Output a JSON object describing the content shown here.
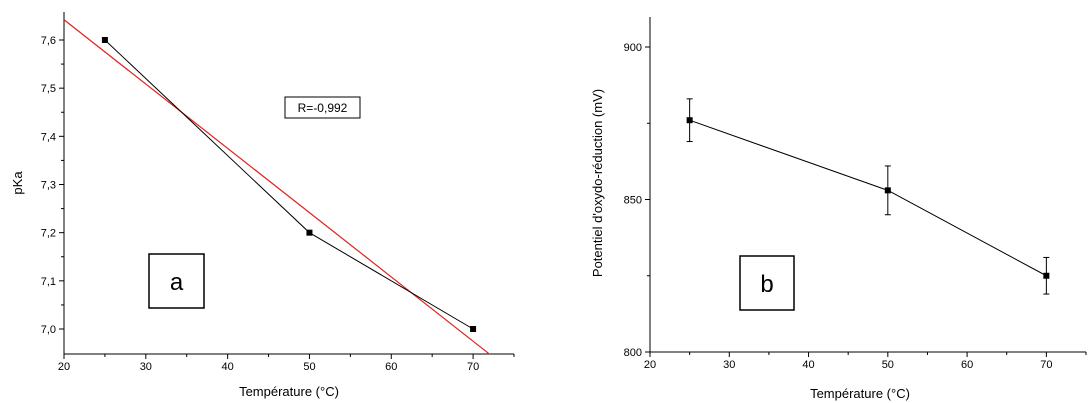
{
  "chart_data": [
    {
      "type": "line",
      "panel_label": "a",
      "xlabel": "Température (°C)",
      "ylabel": "pKa",
      "xlim": [
        20,
        75
      ],
      "ylim": [
        6.95,
        7.65
      ],
      "x_ticks": [
        20,
        25,
        30,
        35,
        40,
        45,
        50,
        55,
        60,
        65,
        70,
        75
      ],
      "x_tick_labels": [
        "20",
        "30",
        "40",
        "50",
        "60",
        "70"
      ],
      "y_ticks": [
        7.0,
        7.05,
        7.1,
        7.15,
        7.2,
        7.25,
        7.3,
        7.35,
        7.4,
        7.45,
        7.5,
        7.55,
        7.6
      ],
      "y_tick_labels": [
        "7,0",
        "7,1",
        "7,2",
        "7,3",
        "7,4",
        "7,5",
        "7,6"
      ],
      "annotation": "R=-0,992",
      "series": [
        {
          "x": [
            25,
            50,
            70
          ],
          "y": [
            7.6,
            7.2,
            7.0
          ],
          "color": "#000000",
          "marker": "square"
        }
      ],
      "fit_line": {
        "color": "#e0221f",
        "x": [
          20,
          72
        ],
        "y": [
          7.642,
          6.948
        ]
      },
      "grid": false
    },
    {
      "type": "line",
      "panel_label": "b",
      "xlabel": "Température (°C)",
      "ylabel": "Potentiel d'oxydo-réduction (mV)",
      "xlim": [
        20,
        75
      ],
      "ylim": [
        800,
        910
      ],
      "x_ticks": [
        20,
        25,
        30,
        35,
        40,
        45,
        50,
        55,
        60,
        65,
        70,
        75
      ],
      "x_tick_labels": [
        "20",
        "30",
        "40",
        "50",
        "60",
        "70"
      ],
      "y_ticks": [
        800,
        825,
        850,
        875,
        900
      ],
      "y_tick_labels": [
        "800",
        "850",
        "900"
      ],
      "series": [
        {
          "x": [
            25,
            50,
            70
          ],
          "y": [
            876,
            853,
            825
          ],
          "error": [
            7,
            8,
            6
          ],
          "color": "#000000",
          "marker": "square"
        }
      ],
      "grid": false
    }
  ]
}
